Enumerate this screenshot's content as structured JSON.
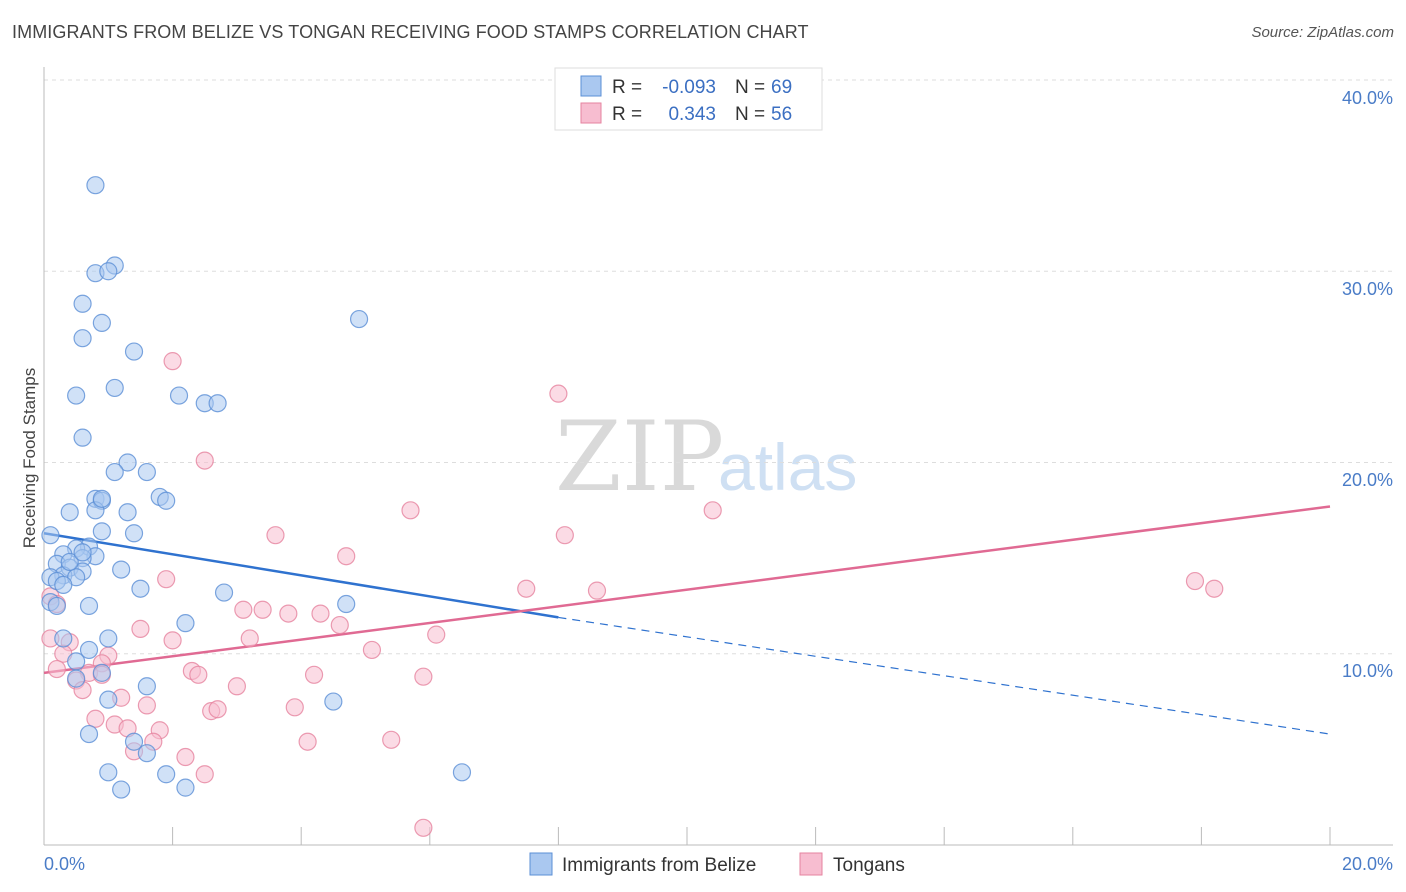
{
  "header": {
    "title": "IMMIGRANTS FROM BELIZE VS TONGAN RECEIVING FOOD STAMPS CORRELATION CHART",
    "source": "Source: ZipAtlas.com"
  },
  "watermark": {
    "zip": "ZIP",
    "atlas": "atlas"
  },
  "chart_data": {
    "type": "scatter",
    "xlabel": "",
    "ylabel": "Receiving Food Stamps",
    "xlim": [
      0,
      20
    ],
    "ylim": [
      0,
      40
    ],
    "x_tick_labels": [
      "0.0%",
      "20.0%"
    ],
    "y_ticks": [
      10,
      20,
      30,
      40
    ],
    "y_tick_labels": [
      "10.0%",
      "20.0%",
      "30.0%",
      "40.0%"
    ],
    "grid": true,
    "legend_position": "top-center",
    "colors": {
      "belize_fill": "#aac8f0",
      "belize_stroke": "#5b8fd6",
      "belize_line": "#2f72cf",
      "tongan_fill": "#f7bdd0",
      "tongan_stroke": "#e6839f",
      "tongan_line": "#e06a93"
    },
    "stats": [
      {
        "r_label": "R =",
        "r_value": "-0.093",
        "n_label": "N =",
        "n_value": "69"
      },
      {
        "r_label": "R =",
        "r_value": "0.343",
        "n_label": "N =",
        "n_value": "56"
      }
    ],
    "series": [
      {
        "name": "Immigrants from Belize",
        "trend": {
          "x0": 0.0,
          "y0": 16.3,
          "x1": 8.0,
          "y1": 11.9,
          "dashed_to_x": 20.0,
          "dashed_to_y": 5.8
        },
        "points": [
          [
            0.8,
            34.5
          ],
          [
            1.1,
            30.3
          ],
          [
            0.8,
            29.9
          ],
          [
            1.0,
            30.0
          ],
          [
            0.6,
            28.3
          ],
          [
            0.9,
            27.3
          ],
          [
            4.9,
            27.5
          ],
          [
            0.6,
            26.5
          ],
          [
            1.4,
            25.8
          ],
          [
            1.1,
            23.9
          ],
          [
            0.5,
            23.5
          ],
          [
            2.1,
            23.5
          ],
          [
            2.5,
            23.1
          ],
          [
            2.7,
            23.1
          ],
          [
            0.6,
            21.3
          ],
          [
            1.3,
            20.0
          ],
          [
            1.1,
            19.5
          ],
          [
            1.6,
            19.5
          ],
          [
            0.8,
            18.1
          ],
          [
            0.9,
            18.0
          ],
          [
            1.8,
            18.2
          ],
          [
            1.9,
            18.0
          ],
          [
            0.4,
            17.4
          ],
          [
            0.8,
            17.5
          ],
          [
            1.3,
            17.4
          ],
          [
            0.1,
            16.2
          ],
          [
            0.9,
            16.4
          ],
          [
            1.4,
            16.3
          ],
          [
            0.7,
            15.6
          ],
          [
            0.5,
            15.5
          ],
          [
            0.3,
            15.2
          ],
          [
            0.8,
            15.1
          ],
          [
            0.6,
            15.0
          ],
          [
            0.2,
            14.7
          ],
          [
            0.4,
            14.5
          ],
          [
            0.6,
            14.3
          ],
          [
            0.3,
            14.1
          ],
          [
            0.1,
            14.0
          ],
          [
            0.5,
            14.0
          ],
          [
            0.2,
            13.8
          ],
          [
            1.2,
            14.4
          ],
          [
            1.5,
            13.4
          ],
          [
            2.8,
            13.2
          ],
          [
            0.1,
            12.7
          ],
          [
            0.2,
            12.5
          ],
          [
            0.7,
            12.5
          ],
          [
            4.7,
            12.6
          ],
          [
            2.2,
            11.6
          ],
          [
            0.3,
            10.8
          ],
          [
            1.0,
            10.8
          ],
          [
            0.7,
            10.2
          ],
          [
            0.5,
            9.6
          ],
          [
            0.9,
            9.0
          ],
          [
            0.5,
            8.7
          ],
          [
            1.6,
            8.3
          ],
          [
            1.0,
            7.6
          ],
          [
            4.5,
            7.5
          ],
          [
            0.7,
            5.8
          ],
          [
            1.4,
            5.4
          ],
          [
            1.6,
            4.8
          ],
          [
            1.0,
            3.8
          ],
          [
            1.9,
            3.7
          ],
          [
            6.5,
            3.8
          ],
          [
            1.2,
            2.9
          ],
          [
            2.2,
            3.0
          ],
          [
            0.9,
            18.1
          ],
          [
            0.4,
            14.8
          ],
          [
            0.6,
            15.3
          ],
          [
            0.3,
            13.6
          ]
        ]
      },
      {
        "name": "Tongans",
        "trend": {
          "x0": 0.0,
          "y0": 9.0,
          "x1": 20.0,
          "y1": 17.7
        },
        "points": [
          [
            2.0,
            25.3
          ],
          [
            8.0,
            23.6
          ],
          [
            2.5,
            20.1
          ],
          [
            5.7,
            17.5
          ],
          [
            10.4,
            17.5
          ],
          [
            3.6,
            16.2
          ],
          [
            8.1,
            16.2
          ],
          [
            4.7,
            15.1
          ],
          [
            1.9,
            13.9
          ],
          [
            7.5,
            13.4
          ],
          [
            8.6,
            13.3
          ],
          [
            17.9,
            13.8
          ],
          [
            18.2,
            13.4
          ],
          [
            0.1,
            13.0
          ],
          [
            0.2,
            12.6
          ],
          [
            3.1,
            12.3
          ],
          [
            3.4,
            12.3
          ],
          [
            3.8,
            12.1
          ],
          [
            4.3,
            12.1
          ],
          [
            4.6,
            11.5
          ],
          [
            1.5,
            11.3
          ],
          [
            6.1,
            11.0
          ],
          [
            0.1,
            10.8
          ],
          [
            2.0,
            10.7
          ],
          [
            3.2,
            10.8
          ],
          [
            0.4,
            10.6
          ],
          [
            5.1,
            10.2
          ],
          [
            0.3,
            10.0
          ],
          [
            1.0,
            9.9
          ],
          [
            0.9,
            9.5
          ],
          [
            2.3,
            9.1
          ],
          [
            0.2,
            9.2
          ],
          [
            0.7,
            9.0
          ],
          [
            0.9,
            8.9
          ],
          [
            2.4,
            8.9
          ],
          [
            4.2,
            8.9
          ],
          [
            5.9,
            8.8
          ],
          [
            0.5,
            8.6
          ],
          [
            0.6,
            8.1
          ],
          [
            3.0,
            8.3
          ],
          [
            1.2,
            7.7
          ],
          [
            1.6,
            7.3
          ],
          [
            2.6,
            7.0
          ],
          [
            2.7,
            7.1
          ],
          [
            3.9,
            7.2
          ],
          [
            0.8,
            6.6
          ],
          [
            1.1,
            6.3
          ],
          [
            1.3,
            6.1
          ],
          [
            1.8,
            6.0
          ],
          [
            1.7,
            5.4
          ],
          [
            4.1,
            5.4
          ],
          [
            5.4,
            5.5
          ],
          [
            1.4,
            4.9
          ],
          [
            2.2,
            4.6
          ],
          [
            2.5,
            3.7
          ],
          [
            5.9,
            0.9
          ]
        ]
      }
    ],
    "bottom_legend": [
      "Immigrants from Belize",
      "Tongans"
    ]
  }
}
